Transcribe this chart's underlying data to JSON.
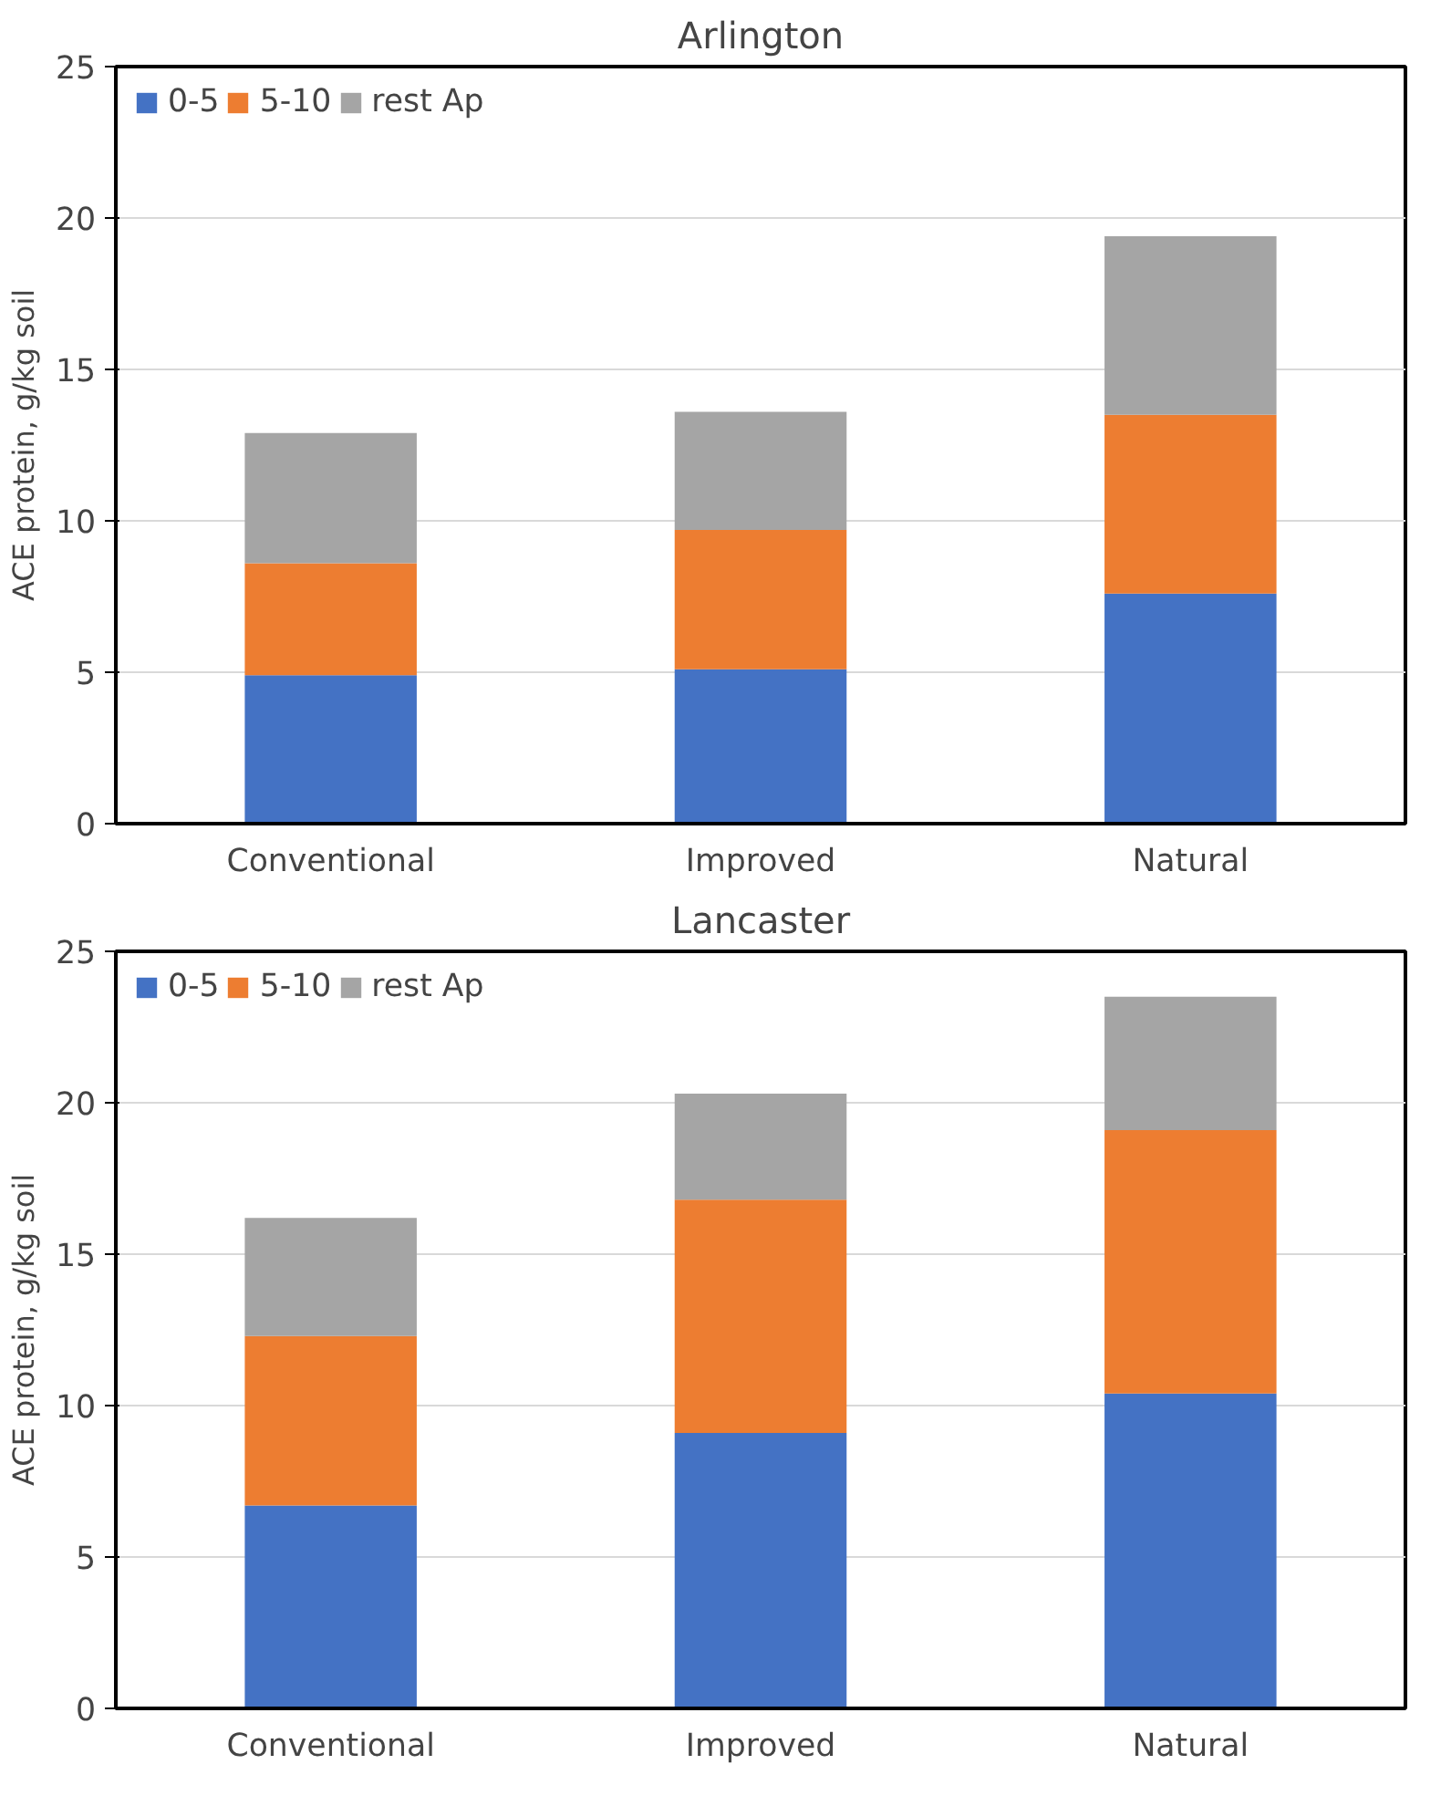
{
  "chart_data": [
    {
      "type": "bar",
      "title": "Arlington",
      "ylabel": "ACE protein, g/kg soil",
      "categories": [
        "Conventional",
        "Improved",
        "Natural"
      ],
      "stacked": true,
      "series": [
        {
          "name": "0-5",
          "color": "#4472c4",
          "values": [
            4.9,
            5.1,
            7.6
          ]
        },
        {
          "name": "5-10",
          "color": "#ed7d31",
          "values": [
            3.7,
            4.6,
            5.9
          ]
        },
        {
          "name": "rest Ap",
          "color": "#a5a5a5",
          "values": [
            4.3,
            3.9,
            5.9
          ]
        }
      ],
      "ylim": [
        0,
        25
      ],
      "yticks": [
        0,
        5,
        10,
        15,
        20,
        25
      ],
      "grid": "y",
      "legend": "top left"
    },
    {
      "type": "bar",
      "title": "Lancaster",
      "ylabel": "ACE protein, g/kg soil",
      "categories": [
        "Conventional",
        "Improved",
        "Natural"
      ],
      "stacked": true,
      "series": [
        {
          "name": "0-5",
          "color": "#4472c4",
          "values": [
            6.7,
            9.1,
            10.4
          ]
        },
        {
          "name": "5-10",
          "color": "#ed7d31",
          "values": [
            5.6,
            7.7,
            8.7
          ]
        },
        {
          "name": "rest Ap",
          "color": "#a5a5a5",
          "values": [
            3.9,
            3.5,
            4.4
          ]
        }
      ],
      "ylim": [
        0,
        25
      ],
      "yticks": [
        0,
        5,
        10,
        15,
        20,
        25
      ],
      "grid": "y",
      "legend": "top left"
    }
  ]
}
